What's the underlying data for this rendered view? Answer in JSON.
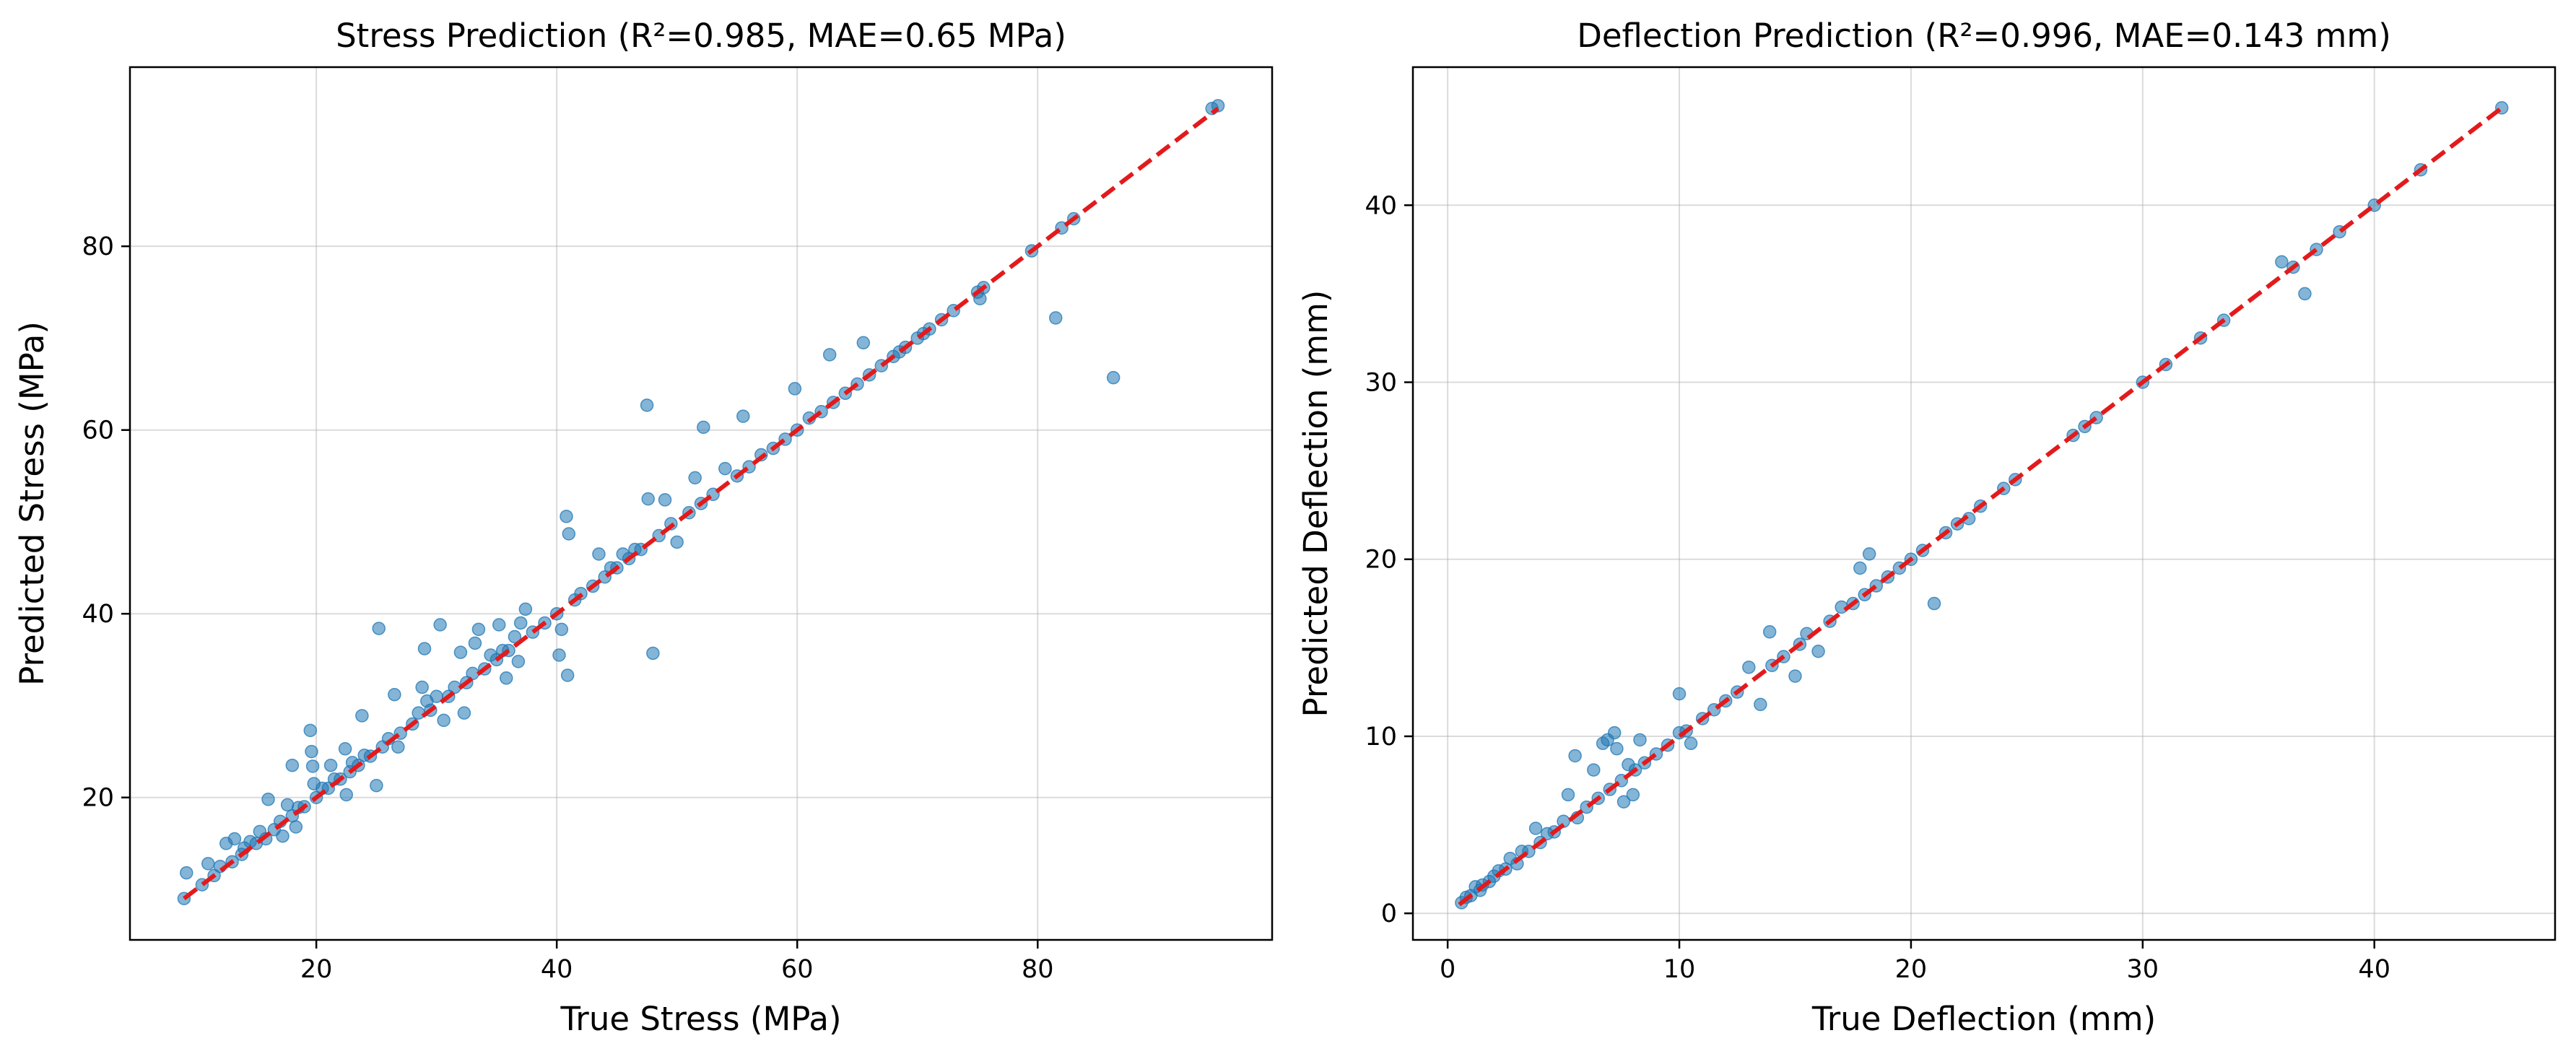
{
  "colors": {
    "points": "#1f77b4",
    "reference_line": "#ff0000"
  },
  "chart_data": [
    {
      "type": "scatter",
      "title": "Stress Prediction (R²=0.985, MAE=0.65 MPa)",
      "xlabel": "True Stress (MPa)",
      "ylabel": "Predicted Stress (MPa)",
      "xlim": [
        4.5,
        99.5
      ],
      "ylim": [
        4.5,
        99.5
      ],
      "xticks": [
        20,
        40,
        60,
        80
      ],
      "yticks": [
        20,
        40,
        60,
        80
      ],
      "grid": true,
      "reference_line": {
        "style": "dashed",
        "color": "red",
        "from": [
          9,
          9
        ],
        "to": [
          95,
          95
        ]
      },
      "points": [
        [
          9,
          9
        ],
        [
          9.2,
          11.8
        ],
        [
          10.5,
          10.5
        ],
        [
          11,
          12.8
        ],
        [
          11.5,
          11.5
        ],
        [
          12,
          12.5
        ],
        [
          12.5,
          15
        ],
        [
          13,
          13
        ],
        [
          13.2,
          15.5
        ],
        [
          13.8,
          13.8
        ],
        [
          14,
          14.5
        ],
        [
          14.5,
          15.2
        ],
        [
          15,
          15
        ],
        [
          15.3,
          16.3
        ],
        [
          15.8,
          15.5
        ],
        [
          16,
          19.8
        ],
        [
          16.5,
          16.5
        ],
        [
          17,
          17.4
        ],
        [
          17.2,
          15.8
        ],
        [
          17.6,
          19.2
        ],
        [
          18,
          23.5
        ],
        [
          18,
          18
        ],
        [
          18.3,
          16.8
        ],
        [
          18.5,
          18.9
        ],
        [
          19,
          19
        ],
        [
          19.5,
          27.3
        ],
        [
          19.6,
          25
        ],
        [
          19.7,
          23.4
        ],
        [
          19.8,
          21.5
        ],
        [
          20,
          20
        ],
        [
          20.5,
          21
        ],
        [
          21,
          21
        ],
        [
          21.2,
          23.5
        ],
        [
          21.5,
          22
        ],
        [
          22,
          22
        ],
        [
          22.4,
          25.3
        ],
        [
          22.5,
          20.3
        ],
        [
          22.8,
          22.8
        ],
        [
          23,
          23.8
        ],
        [
          23.5,
          23.5
        ],
        [
          23.8,
          28.9
        ],
        [
          24,
          24.6
        ],
        [
          24.5,
          24.5
        ],
        [
          25,
          21.3
        ],
        [
          25.2,
          38.4
        ],
        [
          25.5,
          25.5
        ],
        [
          26,
          26.4
        ],
        [
          26.5,
          31.2
        ],
        [
          26.8,
          25.5
        ],
        [
          27,
          27
        ],
        [
          28,
          28
        ],
        [
          28.5,
          29.2
        ],
        [
          28.8,
          32
        ],
        [
          29,
          36.2
        ],
        [
          29.2,
          30.5
        ],
        [
          29.5,
          29.5
        ],
        [
          30,
          31
        ],
        [
          30.3,
          38.8
        ],
        [
          30.6,
          28.4
        ],
        [
          31,
          31
        ],
        [
          31.5,
          32
        ],
        [
          32,
          35.8
        ],
        [
          32.3,
          29.2
        ],
        [
          32.5,
          32.5
        ],
        [
          33,
          33.5
        ],
        [
          33.2,
          36.8
        ],
        [
          33.5,
          38.3
        ],
        [
          34,
          34
        ],
        [
          34.5,
          35.5
        ],
        [
          35,
          35
        ],
        [
          35.2,
          38.8
        ],
        [
          35.5,
          36
        ],
        [
          35.8,
          33
        ],
        [
          36,
          36
        ],
        [
          36.5,
          37.5
        ],
        [
          36.8,
          34.8
        ],
        [
          37,
          39
        ],
        [
          37.4,
          40.5
        ],
        [
          38,
          38
        ],
        [
          39,
          39
        ],
        [
          40,
          40
        ],
        [
          40.2,
          35.5
        ],
        [
          40.4,
          38.3
        ],
        [
          40.8,
          50.6
        ],
        [
          40.9,
          33.3
        ],
        [
          41,
          48.7
        ],
        [
          41.5,
          41.5
        ],
        [
          42,
          42.2
        ],
        [
          43,
          43
        ],
        [
          43.5,
          46.5
        ],
        [
          44,
          44
        ],
        [
          44.5,
          45
        ],
        [
          45,
          45
        ],
        [
          45.5,
          46.5
        ],
        [
          46,
          46
        ],
        [
          46.5,
          47
        ],
        [
          47,
          47
        ],
        [
          47.5,
          62.7
        ],
        [
          47.6,
          52.5
        ],
        [
          48,
          35.7
        ],
        [
          48.5,
          48.5
        ],
        [
          49,
          52.4
        ],
        [
          49.5,
          49.8
        ],
        [
          50,
          47.8
        ],
        [
          51,
          51
        ],
        [
          51.5,
          54.8
        ],
        [
          52,
          52
        ],
        [
          52.2,
          60.3
        ],
        [
          53,
          53
        ],
        [
          54,
          55.8
        ],
        [
          55,
          55
        ],
        [
          55.5,
          61.5
        ],
        [
          56,
          56
        ],
        [
          57,
          57.3
        ],
        [
          58,
          58
        ],
        [
          59,
          59
        ],
        [
          59.8,
          64.5
        ],
        [
          60,
          60
        ],
        [
          61,
          61.3
        ],
        [
          62,
          62
        ],
        [
          62.7,
          68.2
        ],
        [
          63,
          63
        ],
        [
          64,
          64
        ],
        [
          65,
          65
        ],
        [
          65.5,
          69.5
        ],
        [
          66,
          66
        ],
        [
          67,
          67
        ],
        [
          68,
          68
        ],
        [
          68.5,
          68.5
        ],
        [
          69,
          69
        ],
        [
          70,
          70
        ],
        [
          70.5,
          70.5
        ],
        [
          71,
          71
        ],
        [
          72,
          72
        ],
        [
          73,
          73
        ],
        [
          75,
          75
        ],
        [
          75.2,
          74.3
        ],
        [
          75.5,
          75.5
        ],
        [
          79.5,
          79.5
        ],
        [
          81.5,
          72.2
        ],
        [
          82,
          82
        ],
        [
          83,
          83
        ],
        [
          86.3,
          65.7
        ],
        [
          94.5,
          95
        ],
        [
          95,
          95.3
        ]
      ]
    },
    {
      "type": "scatter",
      "title": "Deflection Prediction (R²=0.996, MAE=0.143 mm)",
      "xlabel": "True Deflection (mm)",
      "ylabel": "Predicted Deflection (mm)",
      "xlim": [
        -1.5,
        47.8
      ],
      "ylim": [
        -1.5,
        47.8
      ],
      "xticks": [
        0,
        10,
        20,
        30,
        40
      ],
      "yticks": [
        0,
        10,
        20,
        30,
        40
      ],
      "grid": true,
      "reference_line": {
        "style": "dashed",
        "color": "red",
        "from": [
          0.5,
          0.5
        ],
        "to": [
          45.5,
          45.5
        ]
      },
      "points": [
        [
          0.6,
          0.6
        ],
        [
          0.8,
          0.9
        ],
        [
          1,
          1
        ],
        [
          1.2,
          1.5
        ],
        [
          1.4,
          1.3
        ],
        [
          1.5,
          1.6
        ],
        [
          1.8,
          1.8
        ],
        [
          2,
          2.1
        ],
        [
          2.2,
          2.4
        ],
        [
          2.5,
          2.5
        ],
        [
          2.7,
          3.1
        ],
        [
          3,
          2.8
        ],
        [
          3.2,
          3.5
        ],
        [
          3.5,
          3.5
        ],
        [
          3.8,
          4.8
        ],
        [
          4,
          4
        ],
        [
          4.3,
          4.5
        ],
        [
          4.6,
          4.6
        ],
        [
          5,
          5.2
        ],
        [
          5.2,
          6.7
        ],
        [
          5.5,
          8.9
        ],
        [
          5.6,
          5.4
        ],
        [
          6,
          6
        ],
        [
          6.3,
          8.1
        ],
        [
          6.5,
          6.5
        ],
        [
          6.7,
          9.6
        ],
        [
          6.9,
          9.8
        ],
        [
          7,
          7
        ],
        [
          7.2,
          10.2
        ],
        [
          7.3,
          9.3
        ],
        [
          7.5,
          7.5
        ],
        [
          7.6,
          6.3
        ],
        [
          7.8,
          8.4
        ],
        [
          8,
          6.7
        ],
        [
          8.1,
          8.1
        ],
        [
          8.3,
          9.8
        ],
        [
          8.5,
          8.5
        ],
        [
          9,
          9
        ],
        [
          9.5,
          9.5
        ],
        [
          10,
          10.2
        ],
        [
          10,
          12.4
        ],
        [
          10.3,
          10.3
        ],
        [
          10.5,
          9.6
        ],
        [
          11,
          11
        ],
        [
          11.5,
          11.5
        ],
        [
          12,
          12
        ],
        [
          12.5,
          12.5
        ],
        [
          13,
          13.9
        ],
        [
          13.5,
          11.8
        ],
        [
          13.9,
          15.9
        ],
        [
          14,
          14
        ],
        [
          14.5,
          14.5
        ],
        [
          15,
          13.4
        ],
        [
          15.2,
          15.2
        ],
        [
          15.5,
          15.8
        ],
        [
          16,
          14.8
        ],
        [
          16.5,
          16.5
        ],
        [
          17,
          17.3
        ],
        [
          17.5,
          17.5
        ],
        [
          17.8,
          19.5
        ],
        [
          18,
          18
        ],
        [
          18.2,
          20.3
        ],
        [
          18.5,
          18.5
        ],
        [
          19,
          19
        ],
        [
          19.5,
          19.5
        ],
        [
          20,
          20
        ],
        [
          20.5,
          20.5
        ],
        [
          21,
          17.5
        ],
        [
          21.5,
          21.5
        ],
        [
          22,
          22
        ],
        [
          22.5,
          22.3
        ],
        [
          23,
          23
        ],
        [
          24,
          24
        ],
        [
          24.5,
          24.5
        ],
        [
          27,
          27
        ],
        [
          27.5,
          27.5
        ],
        [
          28,
          28
        ],
        [
          30,
          30
        ],
        [
          31,
          31
        ],
        [
          32.5,
          32.5
        ],
        [
          33.5,
          33.5
        ],
        [
          36,
          36.8
        ],
        [
          36.5,
          36.5
        ],
        [
          37,
          35
        ],
        [
          37.5,
          37.5
        ],
        [
          38.5,
          38.5
        ],
        [
          40,
          40
        ],
        [
          42,
          42
        ],
        [
          45.5,
          45.5
        ]
      ]
    }
  ]
}
